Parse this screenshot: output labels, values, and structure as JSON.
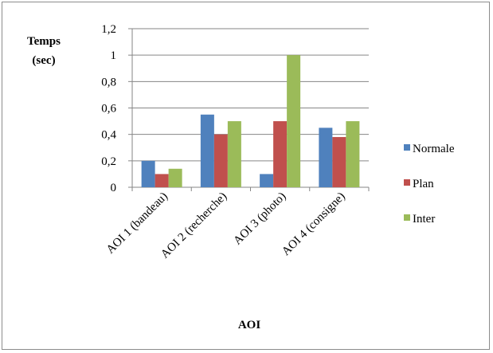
{
  "chart_data": {
    "type": "bar",
    "ylabel_lines": [
      "Temps",
      "(sec)"
    ],
    "xlabel": "AOI",
    "categories": [
      "AOI 1 (bandeau)",
      "AOI 2 (recherche)",
      "AOI 3 (photo)",
      "AOI 4 (consigne)"
    ],
    "series": [
      {
        "name": "Normale",
        "color": "#4f81bd",
        "values": [
          0.2,
          0.55,
          0.1,
          0.45
        ]
      },
      {
        "name": "Plan",
        "color": "#c0504d",
        "values": [
          0.1,
          0.4,
          0.5,
          0.38
        ]
      },
      {
        "name": "Inter",
        "color": "#9bbb59",
        "values": [
          0.14,
          0.5,
          1.0,
          0.5
        ]
      }
    ],
    "yticks": [
      "0",
      "0,2",
      "0,4",
      "0,6",
      "0,8",
      "1",
      "1,2"
    ],
    "ylim": [
      0,
      1.2
    ],
    "grid": true,
    "legend_position": "right"
  }
}
